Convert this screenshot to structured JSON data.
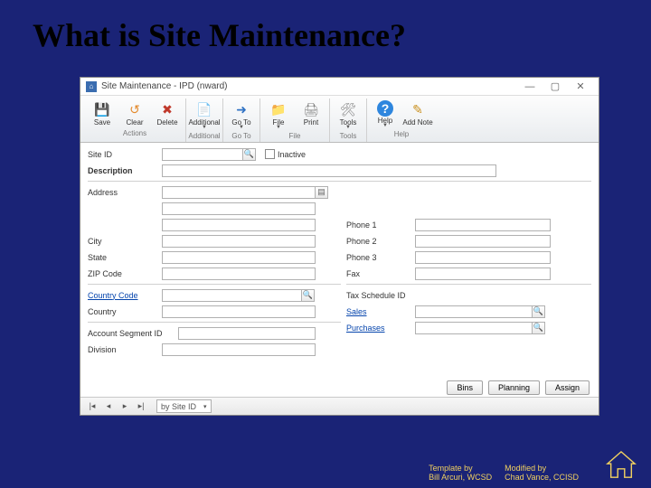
{
  "slide": {
    "title": "What is Site Maintenance?"
  },
  "window": {
    "title": "Site Maintenance - IPD (nward)",
    "controls": {
      "min": "—",
      "max": "▢",
      "close": "✕"
    }
  },
  "ribbon": {
    "groups": [
      {
        "label": "Actions",
        "items": [
          {
            "name": "save",
            "label": "Save",
            "icon": "💾",
            "color": "#7a63b2"
          },
          {
            "name": "clear",
            "label": "Clear",
            "icon": "↺",
            "color": "#e38b2f"
          },
          {
            "name": "delete",
            "label": "Delete",
            "icon": "✖",
            "color": "#c0392b"
          }
        ]
      },
      {
        "label": "Additional",
        "items": [
          {
            "name": "additional",
            "label": "Additional",
            "icon": "📄",
            "color": "#6aa84f",
            "dropdown": true
          }
        ]
      },
      {
        "label": "Go To",
        "items": [
          {
            "name": "goto",
            "label": "Go To",
            "icon": "➜",
            "color": "#3072c4",
            "dropdown": true
          }
        ]
      },
      {
        "label": "File",
        "items": [
          {
            "name": "file",
            "label": "File",
            "icon": "📁",
            "color": "#d9a441",
            "dropdown": true
          },
          {
            "name": "print",
            "label": "Print",
            "icon": "🖨",
            "color": "#808080"
          }
        ]
      },
      {
        "label": "Tools",
        "items": [
          {
            "name": "tools",
            "label": "Tools",
            "icon": "🛠",
            "color": "#808080",
            "dropdown": true
          }
        ]
      },
      {
        "label": "Help",
        "items": [
          {
            "name": "help",
            "label": "Help",
            "icon": "?",
            "color": "#2e86de",
            "dropdown": true
          },
          {
            "name": "addnote",
            "label": "Add Note",
            "icon": "✎",
            "color": "#c98f1d"
          }
        ]
      }
    ]
  },
  "form": {
    "site_id_label": "Site ID",
    "description_label": "Description",
    "inactive_label": "Inactive",
    "address_label": "Address",
    "city_label": "City",
    "state_label": "State",
    "zip_label": "ZIP Code",
    "country_code_label": "Country Code",
    "country_label": "Country",
    "account_segment_label": "Account Segment ID",
    "division_label": "Division",
    "phone1_label": "Phone 1",
    "phone2_label": "Phone 2",
    "phone3_label": "Phone 3",
    "fax_label": "Fax",
    "tax_schedule_label": "Tax Schedule ID",
    "sales_label": "Sales",
    "purchases_label": "Purchases"
  },
  "footer_buttons": {
    "bins": "Bins",
    "planning": "Planning",
    "assign": "Assign"
  },
  "nav": {
    "sort_label": "by Site ID"
  },
  "credits": {
    "template_title": "Template by",
    "template_author": "Bill Arcuri, WCSD",
    "modified_title": "Modified by",
    "modified_author": "Chad Vance, CCISD"
  },
  "colors": {
    "slide_bg": "#1a2376",
    "credit_color": "#f0d060"
  }
}
